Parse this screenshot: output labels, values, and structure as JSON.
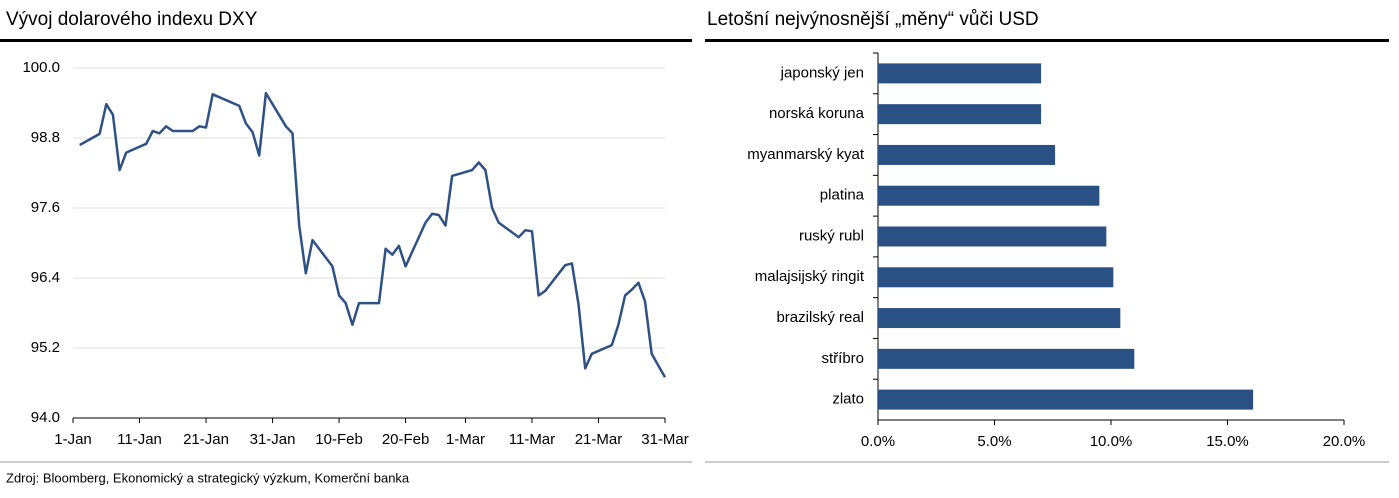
{
  "chart_data": [
    {
      "type": "line",
      "title": "Vývoj dolarového indexu DXY",
      "color": "#2e5283",
      "grid": true,
      "x": [
        1,
        4,
        5,
        6,
        7,
        8,
        11,
        12,
        13,
        14,
        15,
        18,
        19,
        20,
        21,
        22,
        25,
        26,
        27,
        28,
        29,
        32,
        33,
        34,
        35,
        36,
        39,
        40,
        41,
        42,
        43,
        46,
        47,
        48,
        49,
        50,
        53,
        54,
        55,
        56,
        57,
        60,
        61,
        62,
        63,
        64,
        67,
        68,
        69,
        70,
        71,
        74,
        75,
        76,
        77,
        78,
        81,
        82,
        83,
        84,
        85,
        86,
        87,
        88,
        89
      ],
      "values": [
        98.68,
        98.87,
        99.38,
        99.2,
        98.25,
        98.55,
        98.7,
        98.92,
        98.88,
        99.0,
        98.92,
        98.92,
        99.0,
        98.98,
        99.55,
        99.5,
        99.35,
        99.05,
        98.9,
        98.5,
        99.57,
        99.0,
        98.88,
        97.3,
        96.48,
        97.05,
        96.6,
        96.1,
        95.97,
        95.6,
        95.97,
        95.97,
        96.9,
        96.8,
        96.95,
        96.6,
        97.35,
        97.5,
        97.48,
        97.3,
        98.15,
        98.25,
        98.38,
        98.25,
        97.6,
        97.35,
        97.1,
        97.22,
        97.2,
        96.1,
        96.18,
        96.62,
        96.65,
        95.95,
        94.85,
        95.1,
        95.25,
        95.6,
        96.1,
        96.2,
        96.32,
        96.0,
        95.1,
        94.9,
        94.7
      ],
      "xlim": [
        0,
        89
      ],
      "xticks": [
        {
          "value": 0,
          "label": "1-Jan"
        },
        {
          "value": 10,
          "label": "11-Jan"
        },
        {
          "value": 20,
          "label": "21-Jan"
        },
        {
          "value": 30,
          "label": "31-Jan"
        },
        {
          "value": 40,
          "label": "10-Feb"
        },
        {
          "value": 50,
          "label": "20-Feb"
        },
        {
          "value": 59,
          "label": "1-Mar"
        },
        {
          "value": 69,
          "label": "11-Mar"
        },
        {
          "value": 79,
          "label": "21-Mar"
        },
        {
          "value": 89,
          "label": "31-Mar"
        }
      ],
      "ylim": [
        94,
        100
      ],
      "yticks": [
        {
          "value": 94,
          "label": "94.0"
        },
        95.2,
        96.4,
        97.6,
        98.8,
        {
          "value": 100,
          "label": "100.0"
        }
      ]
    },
    {
      "type": "hbar",
      "title": "Letošní nejvýnosnější „měny“ vůči USD",
      "color": "#2b5083",
      "categories": [
        "japonský jen",
        "norská koruna",
        "myanmarský kyat",
        "platina",
        "ruský rubl",
        "malajsijský ringit",
        "brazilský real",
        "stříbro",
        "zlato"
      ],
      "values": [
        7.0,
        7.0,
        7.6,
        9.5,
        9.8,
        10.1,
        10.4,
        11.0,
        16.1
      ],
      "xlim": [
        0,
        20
      ],
      "xticks": [
        {
          "value": 0,
          "label": "0.0%"
        },
        {
          "value": 5,
          "label": "5.0%"
        },
        {
          "value": 10,
          "label": "10.0%"
        },
        {
          "value": 15,
          "label": "15.0%"
        },
        {
          "value": 20,
          "label": "20.0%"
        }
      ]
    }
  ],
  "source": "Zdroj: Bloomberg, Ekonomický a strategický výzkum, Komerční banka"
}
